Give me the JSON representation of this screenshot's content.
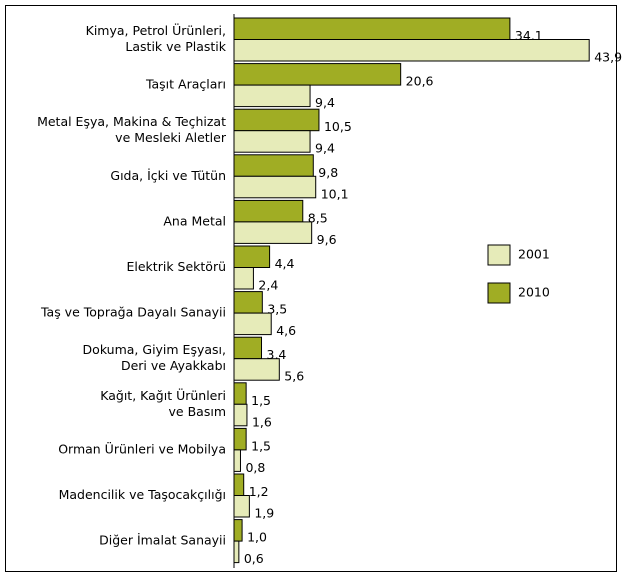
{
  "chart_data": {
    "type": "hbar",
    "categories": [
      [
        "Kimya, Petrol Ürünleri,",
        "Lastik ve Plastik"
      ],
      [
        "Taşıt Araçları"
      ],
      [
        "Metal Eşya, Makina & Teçhizat",
        "ve Mesleki Aletler"
      ],
      [
        "Gıda, İçki ve Tütün"
      ],
      [
        "Ana Metal"
      ],
      [
        "Elektrik Sektörü"
      ],
      [
        "Taş ve Toprağa Dayalı Sanayii"
      ],
      [
        "Dokuma, Giyim Eşyası,",
        "Deri ve Ayakkabı"
      ],
      [
        "Kağıt, Kağıt Ürünleri",
        "ve Basım"
      ],
      [
        "Orman Ürünleri ve Mobilya"
      ],
      [
        "Madencilik ve Taşocakçılığı"
      ],
      [
        "Diğer İmalat Sanayii"
      ]
    ],
    "series": [
      {
        "name": "2001",
        "color": "#e6ebb9",
        "values": [
          43.9,
          9.4,
          9.4,
          10.1,
          9.6,
          2.4,
          4.6,
          5.6,
          1.6,
          0.8,
          1.9,
          0.6
        ],
        "value_labels": [
          "43,9",
          "9,4",
          "9,4",
          "10,1",
          "9,6",
          "2,4",
          "4,6",
          "5,6",
          "1,6",
          "0,8",
          "1,9",
          "0,6"
        ]
      },
      {
        "name": "2010",
        "color": "#a0ad24",
        "values": [
          34.1,
          20.6,
          10.5,
          9.8,
          8.5,
          4.4,
          3.5,
          3.4,
          1.5,
          1.5,
          1.2,
          1.0
        ],
        "value_labels": [
          "34,1",
          "20,6",
          "10,5",
          "9,8",
          "8,5",
          "4,4",
          "3,5",
          "3,4",
          "1,5",
          "1,5",
          "1,2",
          "1,0"
        ]
      }
    ],
    "xlim": [
      0,
      44
    ]
  }
}
